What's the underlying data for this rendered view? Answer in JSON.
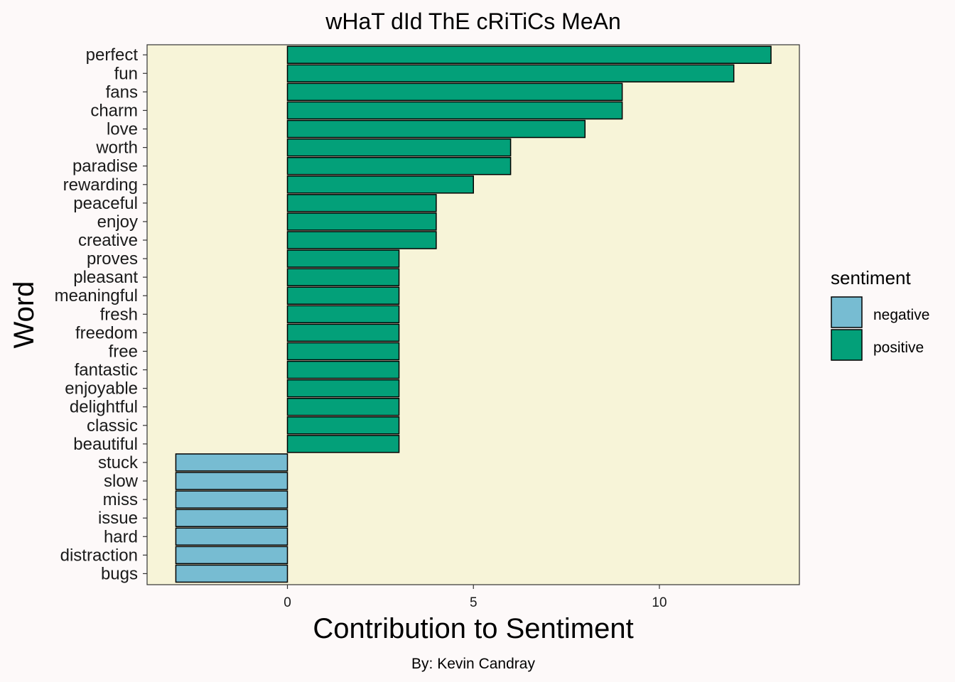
{
  "colors": {
    "background": "#fdf9f9",
    "panel": "#f7f4d8",
    "negative": "#77bcd2",
    "positive": "#03a079",
    "bar_outline": "#000000"
  },
  "chart_data": {
    "type": "bar",
    "orientation": "horizontal",
    "title": "wHaT dId ThE cRiTiCs MeAn",
    "xlabel": "Contribution to Sentiment",
    "ylabel": "Word",
    "caption": "By: Kevin Candray",
    "xlim": [
      -3.8,
      13.8
    ],
    "xticks": [
      0,
      5,
      10
    ],
    "grid": false,
    "legend": {
      "title": "sentiment",
      "position": "right",
      "entries": [
        {
          "label": "negative",
          "color": "#77bcd2"
        },
        {
          "label": "positive",
          "color": "#03a079"
        }
      ]
    },
    "categories": [
      "perfect",
      "fun",
      "fans",
      "charm",
      "love",
      "worth",
      "paradise",
      "rewarding",
      "peaceful",
      "enjoy",
      "creative",
      "proves",
      "pleasant",
      "meaningful",
      "fresh",
      "freedom",
      "free",
      "fantastic",
      "enjoyable",
      "delightful",
      "classic",
      "beautiful",
      "stuck",
      "slow",
      "miss",
      "issue",
      "hard",
      "distraction",
      "bugs"
    ],
    "values": [
      13,
      12,
      9,
      9,
      8,
      6,
      6,
      5,
      4,
      4,
      4,
      3,
      3,
      3,
      3,
      3,
      3,
      3,
      3,
      3,
      3,
      3,
      -3,
      -3,
      -3,
      -3,
      -3,
      -3,
      -3
    ],
    "sentiment": [
      "positive",
      "positive",
      "positive",
      "positive",
      "positive",
      "positive",
      "positive",
      "positive",
      "positive",
      "positive",
      "positive",
      "positive",
      "positive",
      "positive",
      "positive",
      "positive",
      "positive",
      "positive",
      "positive",
      "positive",
      "positive",
      "positive",
      "negative",
      "negative",
      "negative",
      "negative",
      "negative",
      "negative",
      "negative"
    ]
  }
}
